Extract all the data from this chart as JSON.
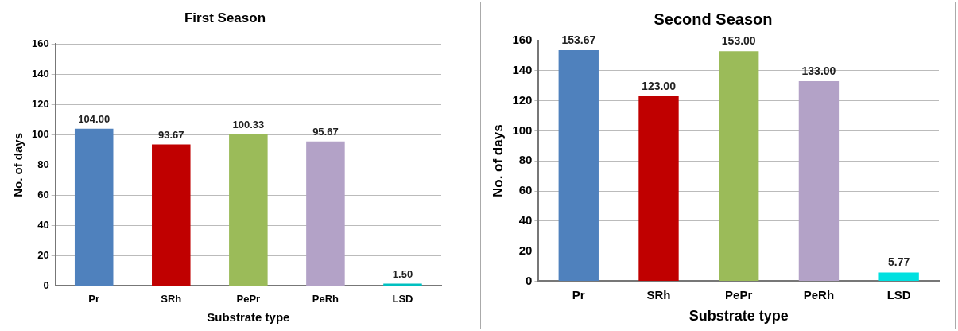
{
  "chart_data": [
    {
      "type": "bar",
      "title": "First Season",
      "xlabel": "Substrate type",
      "ylabel": "No. of days",
      "categories": [
        "Pr",
        "SRh",
        "PePr",
        "PeRh",
        "LSD"
      ],
      "values": [
        104,
        93.67,
        100.33,
        95.67,
        1.5
      ],
      "value_labels": [
        "104.00",
        "93.67",
        "100.33",
        "95.67",
        "1.50"
      ],
      "colors": [
        "#4f81bd",
        "#c00000",
        "#9bbb59",
        "#b3a2c7",
        "#00c0c0"
      ],
      "ylim": [
        0,
        160
      ],
      "yticks": [
        0,
        20,
        40,
        60,
        80,
        100,
        120,
        140,
        160
      ],
      "grid": "y",
      "legend": false
    },
    {
      "type": "bar",
      "title": "Second Season",
      "xlabel": "Substrate type",
      "ylabel": "No. of days",
      "categories": [
        "Pr",
        "SRh",
        "PePr",
        "PeRh",
        "LSD"
      ],
      "values": [
        153.67,
        123,
        153,
        133,
        5.77
      ],
      "value_labels": [
        "153.67",
        "123.00",
        "153.00",
        "133.00",
        "5.77"
      ],
      "colors": [
        "#4f81bd",
        "#c00000",
        "#9bbb59",
        "#b3a2c7",
        "#00e0e0"
      ],
      "ylim": [
        0,
        160
      ],
      "yticks": [
        0,
        20,
        40,
        60,
        80,
        100,
        120,
        140,
        160
      ],
      "grid": "y",
      "legend": false
    }
  ]
}
